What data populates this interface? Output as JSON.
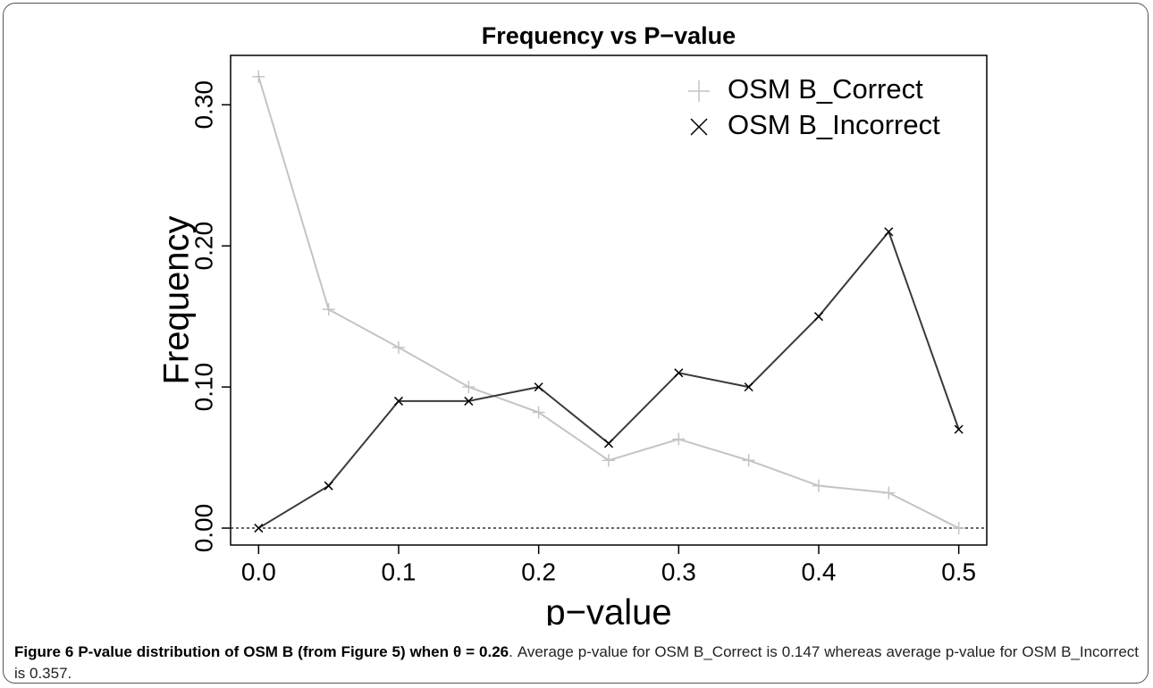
{
  "chart_data": {
    "type": "line",
    "title": "Frequency vs P−value",
    "xlabel": "p−value",
    "ylabel": "Frequency",
    "x": [
      0,
      0.05,
      0.1,
      0.15,
      0.2,
      0.25,
      0.3,
      0.35,
      0.4,
      0.45,
      0.5
    ],
    "series": [
      {
        "name": "OSM B_Correct",
        "color": "#c4c4c4",
        "marker": "plus",
        "values": [
          0.32,
          0.155,
          0.128,
          0.1,
          0.082,
          0.048,
          0.063,
          0.048,
          0.03,
          0.025,
          0.0
        ]
      },
      {
        "name": "OSM B_Incorrect",
        "color": "#3a3a3a",
        "marker": "cross",
        "values": [
          0.0,
          0.03,
          0.09,
          0.09,
          0.1,
          0.06,
          0.11,
          0.1,
          0.15,
          0.21,
          0.07
        ]
      }
    ],
    "xlim": [
      -0.02,
      0.52
    ],
    "ylim": [
      -0.012,
      0.335
    ],
    "xticks": [
      {
        "value": 0,
        "label": "0.0"
      },
      0.1,
      0.2,
      0.3,
      0.4,
      0.5
    ],
    "yticks": [
      {
        "value": 0,
        "label": "0.00"
      },
      {
        "value": 0.1,
        "label": "0.10"
      },
      {
        "value": 0.2,
        "label": "0.20"
      },
      {
        "value": 0.3,
        "label": "0.30"
      }
    ],
    "hline": 0,
    "legend": "top-right",
    "grid": false
  },
  "caption": {
    "label": "Figure 6",
    "title": "P-value distribution of OSM B (from Figure 5) when θ = 0.26",
    "text": ". Average p-value for OSM B_Correct is 0.147 whereas average p-value for OSM B_Incorrect is 0.357."
  }
}
